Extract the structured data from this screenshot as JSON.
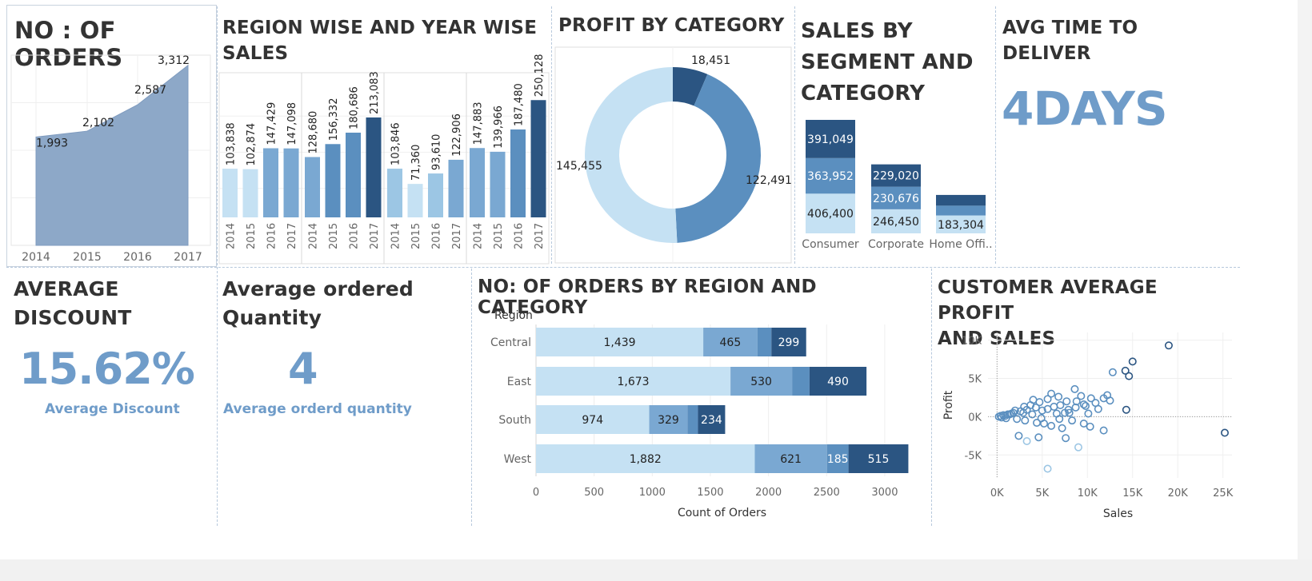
{
  "colors": {
    "lightest": "#c5e1f3",
    "light": "#9cc6e4",
    "mid": "#7aa8d2",
    "mid2": "#5b8fbf",
    "dark": "#3c6c9e",
    "darkest": "#2b5582",
    "area": "#8da8c8",
    "kpi": "#6f9cc9"
  },
  "panels": {
    "orders": {
      "title": "NO : OF ORDERS"
    },
    "region_year": {
      "title_line1": "REGION WISE AND YEAR WISE",
      "title_line2": "SALES"
    },
    "profit_cat": {
      "title": "PROFIT BY CATEGORY"
    },
    "segment": {
      "title_line1": "SALES BY",
      "title_line2": "SEGMENT AND",
      "title_line3": "CATEGORY"
    },
    "deliver": {
      "title_line1": "AVG TIME TO",
      "title_line2": "DELIVER",
      "value": "4DAYS"
    },
    "discount": {
      "title_line1": "AVERAGE",
      "title_line2": "DISCOUNT",
      "value": "15.62%",
      "caption": "Average Discount"
    },
    "quantity": {
      "title_line1": "Average ordered",
      "title_line2": "Quantity",
      "value": "4",
      "caption": "Average orderd quantity"
    },
    "region_cat": {
      "title": "NO: OF ORDERS BY REGION AND CATEGORY"
    },
    "customer": {
      "title_line1": "CUSTOMER AVERAGE PROFIT",
      "title_line2": "AND SALES"
    }
  },
  "chart_data": [
    {
      "id": "orders",
      "type": "area",
      "x": [
        "2014",
        "2015",
        "2016",
        "2017"
      ],
      "values": [
        1993,
        2102,
        2587,
        3312
      ],
      "labels": [
        "1,993",
        "2,102",
        "2,587",
        "3,312"
      ],
      "ylim": [
        0,
        3500
      ]
    },
    {
      "id": "region_year",
      "type": "bar",
      "ylim": [
        0,
        300000
      ],
      "groups": [
        {
          "years": [
            "2014",
            "2015",
            "2016",
            "2017"
          ],
          "values": [
            103838,
            102874,
            147429,
            147098
          ],
          "labels": [
            "103,838",
            "102,874",
            "147,429",
            "147,098"
          ]
        },
        {
          "years": [
            "2014",
            "2015",
            "2016",
            "2017"
          ],
          "values": [
            128680,
            156332,
            180686,
            213083
          ],
          "labels": [
            "128,680",
            "156,332",
            "180,686",
            "213,083"
          ]
        },
        {
          "years": [
            "2014",
            "2015",
            "2016",
            "2017"
          ],
          "values": [
            103846,
            71360,
            93610,
            122906
          ],
          "labels": [
            "103,846",
            "71,360",
            "93,610",
            "122,906"
          ]
        },
        {
          "years": [
            "2014",
            "2015",
            "2016",
            "2017"
          ],
          "values": [
            147883,
            139966,
            187480,
            250128
          ],
          "labels": [
            "147,883",
            "139,966",
            "187,480",
            "250,128"
          ]
        }
      ]
    },
    {
      "id": "profit_cat",
      "type": "pie",
      "values": [
        18451,
        122491,
        145455
      ],
      "labels": [
        "18,451",
        "122,491",
        "145,455"
      ]
    },
    {
      "id": "segment",
      "type": "bar",
      "stacked": true,
      "categories": [
        "Consumer",
        "Corporate",
        "Home Offi.."
      ],
      "series": [
        {
          "values": [
            406400,
            246450,
            183304
          ],
          "labels": [
            "406,400",
            "246,450",
            "183,304"
          ]
        },
        {
          "values": [
            363952,
            230676,
            100000
          ],
          "labels": [
            "363,952",
            "230,676",
            ""
          ]
        },
        {
          "values": [
            391049,
            229020,
            110000
          ],
          "labels": [
            "391,049",
            "229,020",
            ""
          ]
        }
      ]
    },
    {
      "id": "region_cat",
      "type": "bar",
      "orientation": "horizontal",
      "ylabel": "Region",
      "xlabel": "Count of Orders",
      "categories": [
        "Central",
        "East",
        "South",
        "West"
      ],
      "xlim": [
        0,
        3200
      ],
      "xticks": [
        "0",
        "500",
        "1000",
        "1500",
        "2000",
        "2500",
        "3000"
      ],
      "series": [
        {
          "values": [
            1439,
            1673,
            974,
            1882
          ],
          "labels": [
            "1,439",
            "1,673",
            "974",
            "1,882"
          ]
        },
        {
          "values": [
            465,
            530,
            329,
            621
          ],
          "labels": [
            "465",
            "530",
            "329",
            "621"
          ]
        },
        {
          "values": [
            121,
            150,
            90,
            185
          ],
          "labels": [
            "",
            "",
            "",
            "185"
          ]
        },
        {
          "values": [
            299,
            490,
            234,
            515
          ],
          "labels": [
            "299",
            "490",
            "234",
            "515"
          ]
        }
      ]
    },
    {
      "id": "customer",
      "type": "scatter",
      "xlabel": "Sales",
      "ylabel": "Profit",
      "xlim": [
        -1000,
        26000
      ],
      "ylim": [
        -8000,
        11000
      ],
      "xticks": [
        0,
        5000,
        10000,
        15000,
        20000,
        25000
      ],
      "xtick_labels": [
        "0K",
        "5K",
        "10K",
        "15K",
        "20K",
        "25K"
      ],
      "yticks": [
        10000,
        5000,
        0,
        -5000
      ],
      "ytick_labels": [
        "10K",
        "5K",
        "0K",
        "-5K"
      ],
      "points": [
        [
          19000,
          9300
        ],
        [
          15000,
          7200
        ],
        [
          14200,
          6000
        ],
        [
          14600,
          5300
        ],
        [
          12800,
          5800
        ],
        [
          25200,
          -2100
        ],
        [
          14300,
          900
        ],
        [
          9000,
          -4000
        ],
        [
          5600,
          -6800
        ],
        [
          11800,
          -1800
        ],
        [
          9300,
          2700
        ],
        [
          10400,
          2400
        ],
        [
          10900,
          1800
        ],
        [
          11800,
          2400
        ],
        [
          12200,
          2800
        ],
        [
          8600,
          3600
        ],
        [
          9600,
          1600
        ],
        [
          11200,
          1000
        ],
        [
          10100,
          400
        ],
        [
          8000,
          500
        ],
        [
          6300,
          1300
        ],
        [
          6800,
          2600
        ],
        [
          7700,
          2000
        ],
        [
          5600,
          2300
        ],
        [
          4700,
          1900
        ],
        [
          4300,
          1200
        ],
        [
          3300,
          900
        ],
        [
          2600,
          700
        ],
        [
          1800,
          500
        ],
        [
          1200,
          300
        ],
        [
          700,
          200
        ],
        [
          400,
          100
        ],
        [
          200,
          0
        ],
        [
          1000,
          -200
        ],
        [
          2200,
          -300
        ],
        [
          3100,
          -500
        ],
        [
          4400,
          -800
        ],
        [
          5200,
          -900
        ],
        [
          6000,
          -1200
        ],
        [
          7200,
          -1500
        ],
        [
          2400,
          -2500
        ],
        [
          3300,
          -3200
        ],
        [
          4600,
          -2700
        ],
        [
          7600,
          -2800
        ],
        [
          1400,
          300
        ],
        [
          2900,
          500
        ],
        [
          3700,
          1500
        ],
        [
          5000,
          800
        ],
        [
          6600,
          400
        ],
        [
          7900,
          900
        ],
        [
          8700,
          1200
        ],
        [
          500,
          -100
        ],
        [
          900,
          100
        ],
        [
          1600,
          400
        ],
        [
          2000,
          800
        ],
        [
          3900,
          300
        ],
        [
          4900,
          -200
        ],
        [
          5600,
          1000
        ],
        [
          6900,
          -300
        ],
        [
          8300,
          -500
        ],
        [
          9600,
          -900
        ],
        [
          10300,
          -1300
        ],
        [
          3000,
          1300
        ],
        [
          4000,
          2200
        ],
        [
          6000,
          3000
        ],
        [
          7000,
          1500
        ],
        [
          7500,
          500
        ],
        [
          8800,
          2000
        ],
        [
          9800,
          1400
        ],
        [
          12500,
          2100
        ]
      ]
    }
  ]
}
